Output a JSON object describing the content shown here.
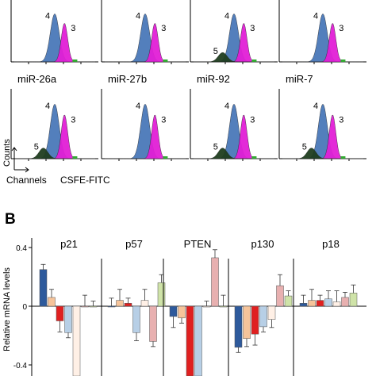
{
  "panel_a": {
    "counts_label": "Counts",
    "channels_label": "Channels",
    "fitc_label": "CSFE-FITC",
    "row1": [
      {
        "title": "",
        "peak_labels": [
          "4",
          "3"
        ]
      },
      {
        "title": "",
        "peak_labels": [
          "4",
          "3"
        ]
      },
      {
        "title": "",
        "peak_labels": [
          "4",
          "5",
          "3"
        ]
      },
      {
        "title": "",
        "peak_labels": [
          "4",
          "3"
        ]
      }
    ],
    "row2": [
      {
        "title": "miR-26a",
        "peak_labels": [
          "4",
          "3",
          "5"
        ]
      },
      {
        "title": "miR-27b",
        "peak_labels": [
          "4",
          "3"
        ]
      },
      {
        "title": "miR-92",
        "peak_labels": [
          "4",
          "5",
          "3"
        ]
      },
      {
        "title": "miR-7",
        "peak_labels": [
          "4",
          "5",
          "3"
        ]
      }
    ],
    "colors": {
      "gen4": "#4a78b8",
      "gen3": "#e21fd6",
      "gen5": "#1f3d1f"
    }
  },
  "panel_b": {
    "panel_letter": "B",
    "ylabel": "Relative mRNA levels",
    "colors": [
      "#2e5a9c",
      "#f6c49a",
      "#e02020",
      "#b7cfe6",
      "#fff0e6",
      "#e8b0b0",
      "#cfe3a8"
    ]
  },
  "chart_data": {
    "type": "bar",
    "ylabel": "Relative mRNA levels",
    "ylim": [
      -0.45,
      0.4
    ],
    "yticks": [
      "0.4",
      "0",
      "-0.4"
    ],
    "groups": [
      {
        "name": "p21",
        "values": [
          0.25,
          0.06,
          -0.1,
          -0.18,
          -0.5,
          0.0,
          0.0
        ]
      },
      {
        "name": "p57",
        "values": [
          0.0,
          0.04,
          0.02,
          -0.18,
          0.04,
          -0.24,
          0.16
        ]
      },
      {
        "name": "PTEN",
        "values": [
          -0.07,
          -0.08,
          -0.5,
          -0.5,
          0.0,
          0.33,
          0.0
        ]
      },
      {
        "name": "p130",
        "values": [
          -0.28,
          -0.22,
          -0.19,
          -0.14,
          -0.09,
          0.14,
          0.07
        ]
      },
      {
        "name": "p18",
        "values": [
          0.02,
          0.04,
          0.04,
          0.05,
          0.03,
          0.06,
          0.09
        ]
      }
    ]
  }
}
